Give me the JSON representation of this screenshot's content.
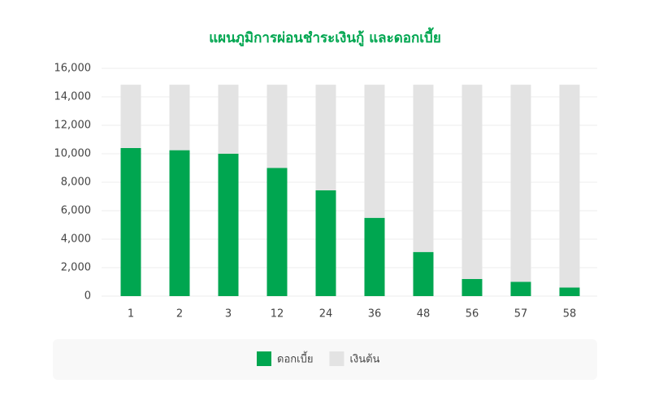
{
  "chart_data": {
    "type": "stacked-bar",
    "title": "แผนภูมิการผ่อนชำระเงินกู้ และดอกเบี้ย",
    "title_color": "#00a650",
    "categories": [
      "1",
      "2",
      "3",
      "12",
      "24",
      "36",
      "48",
      "56",
      "57",
      "58"
    ],
    "series": [
      {
        "name": "ดอกเบี้ย",
        "color": "#00a650",
        "values": [
          10400,
          10250,
          10000,
          9000,
          7430,
          5500,
          3100,
          1200,
          1000,
          600
        ]
      },
      {
        "name": "เงินต้น",
        "color": "#e3e3e3",
        "values": [
          4450,
          4600,
          4850,
          5850,
          7420,
          9350,
          11750,
          13650,
          13850,
          14250
        ]
      }
    ],
    "ylim": [
      0,
      16000
    ],
    "yticks": [
      0,
      {
        "value": 2000,
        "label": "2,000"
      },
      {
        "value": 4000,
        "label": "4,000"
      },
      {
        "value": 6000,
        "label": "6,000"
      },
      {
        "value": 8000,
        "label": "8,000"
      },
      {
        "value": 10000,
        "label": "10,000"
      },
      {
        "value": 12000,
        "label": "12,000"
      },
      {
        "value": 14000,
        "label": "14,000"
      },
      {
        "value": 16000,
        "label": "16,000"
      }
    ],
    "grid": true,
    "legend": "bottom"
  }
}
